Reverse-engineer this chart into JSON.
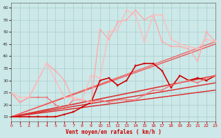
{
  "xlabel": "Vent moyen/en rafales ( km/h )",
  "xlim": [
    0,
    23
  ],
  "ylim": [
    13,
    62
  ],
  "yticks": [
    15,
    20,
    25,
    30,
    35,
    40,
    45,
    50,
    55,
    60
  ],
  "xticks": [
    0,
    1,
    2,
    3,
    4,
    5,
    6,
    7,
    8,
    9,
    10,
    11,
    12,
    13,
    14,
    15,
    16,
    17,
    18,
    19,
    20,
    21,
    22,
    23
  ],
  "background_color": "#cce8e8",
  "grid_color": "#aacccc",
  "series": [
    {
      "x": [
        0,
        23
      ],
      "y": [
        15,
        26
      ],
      "color": "#dd2222",
      "linewidth": 1.0,
      "marker": null,
      "linestyle": "-"
    },
    {
      "x": [
        0,
        23
      ],
      "y": [
        15,
        29
      ],
      "color": "#dd2222",
      "linewidth": 1.0,
      "marker": null,
      "linestyle": "-"
    },
    {
      "x": [
        0,
        23
      ],
      "y": [
        15,
        32
      ],
      "color": "#dd3333",
      "linewidth": 1.2,
      "marker": null,
      "linestyle": "-"
    },
    {
      "x": [
        0,
        23
      ],
      "y": [
        15,
        45
      ],
      "color": "#ee5555",
      "linewidth": 1.0,
      "marker": null,
      "linestyle": "-"
    },
    {
      "x": [
        0,
        23
      ],
      "y": [
        15,
        46
      ],
      "color": "#ee6666",
      "linewidth": 1.0,
      "marker": null,
      "linestyle": "-"
    },
    {
      "x": [
        0,
        1,
        2,
        3,
        4,
        5,
        6,
        7,
        8,
        9,
        10,
        11,
        12,
        13,
        14,
        15,
        16,
        17,
        18,
        19,
        20,
        21,
        22,
        23
      ],
      "y": [
        15,
        15,
        15,
        15,
        15,
        15,
        16,
        17,
        19,
        21,
        30,
        31,
        28,
        30,
        36,
        37,
        37,
        34,
        27,
        32,
        30,
        31,
        30,
        32
      ],
      "color": "#cc0000",
      "linewidth": 1.2,
      "marker": "s",
      "markersize": 2.0,
      "linestyle": "-"
    },
    {
      "x": [
        0,
        1,
        2,
        3,
        4,
        5,
        6,
        7,
        8,
        9,
        10,
        11,
        12,
        13,
        14,
        15,
        16,
        17,
        18,
        19,
        20,
        21,
        22,
        23
      ],
      "y": [
        25,
        21,
        23,
        23,
        23,
        20,
        18,
        22,
        22,
        21,
        22,
        21,
        22,
        22,
        22,
        24,
        26,
        26,
        28,
        29,
        30,
        29,
        31,
        32
      ],
      "color": "#ee7777",
      "linewidth": 1.0,
      "marker": "s",
      "markersize": 2.0,
      "linestyle": "-"
    },
    {
      "x": [
        0,
        1,
        2,
        3,
        4,
        5,
        6,
        7,
        8,
        9,
        10,
        11,
        12,
        13,
        14,
        15,
        16,
        17,
        18,
        19,
        20,
        21,
        22,
        23
      ],
      "y": [
        25,
        21,
        23,
        30,
        37,
        34,
        30,
        22,
        22,
        21,
        51,
        47,
        54,
        55,
        59,
        55,
        57,
        46,
        44,
        44,
        43,
        38,
        50,
        46
      ],
      "color": "#ffaaaa",
      "linewidth": 1.0,
      "marker": "s",
      "markersize": 2.0,
      "linestyle": "-"
    },
    {
      "x": [
        0,
        1,
        2,
        3,
        4,
        5,
        6,
        7,
        8,
        9,
        10,
        11,
        12,
        13,
        14,
        15,
        16,
        17,
        18,
        19,
        20,
        21,
        22,
        23
      ],
      "y": [
        25,
        23,
        23,
        30,
        37,
        30,
        23,
        23,
        22,
        32,
        31,
        50,
        51,
        59,
        57,
        46,
        57,
        57,
        47,
        45,
        44,
        43,
        47,
        46
      ],
      "color": "#ffbbbb",
      "linewidth": 1.0,
      "marker": "s",
      "markersize": 2.0,
      "linestyle": "-"
    }
  ]
}
